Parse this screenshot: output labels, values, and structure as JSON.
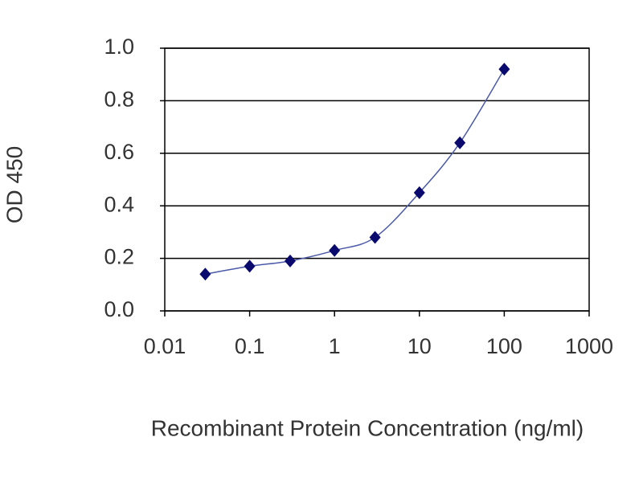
{
  "chart_data": {
    "type": "line",
    "xlabel": "Recombinant Protein Concentration  (ng/ml)",
    "ylabel": "OD 450",
    "x": [
      0.03,
      0.1,
      0.3,
      1,
      3,
      10,
      30,
      100
    ],
    "values": [
      0.14,
      0.17,
      0.19,
      0.23,
      0.28,
      0.45,
      0.64,
      0.92
    ],
    "color": "#4a5aa8",
    "marker_color": "#0a0a6e",
    "xscale": "log",
    "xlim": [
      0.01,
      1000
    ],
    "xticks": [
      0.01,
      0.1,
      1,
      10,
      100,
      1000
    ],
    "ylim": [
      0,
      1
    ],
    "yticks": [
      {
        "value": 0,
        "label": "0.0"
      },
      0.2,
      0.4,
      0.6,
      0.8,
      {
        "value": 1,
        "label": "1.0"
      }
    ],
    "grid": true
  }
}
